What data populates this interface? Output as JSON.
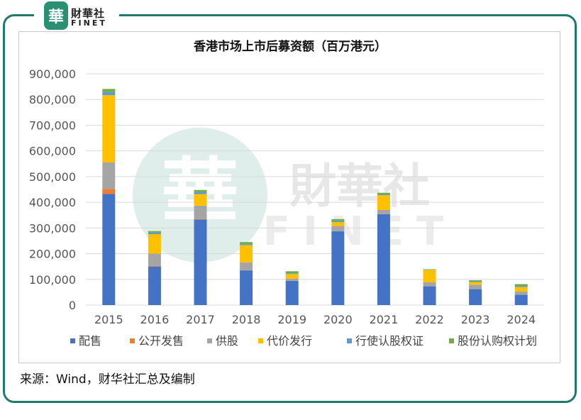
{
  "logo": {
    "badge": "華",
    "cn": "財華社",
    "en": "FINET"
  },
  "watermark": {
    "badge": "華",
    "cn": "財華社",
    "en": "FINET"
  },
  "source": "来源：Wind，财华社汇总及编制",
  "chart_data": {
    "type": "bar",
    "stacked": true,
    "title": "香港市场上市后募资额（百万港元）",
    "categories": [
      "2015",
      "2016",
      "2017",
      "2018",
      "2019",
      "2020",
      "2021",
      "2022",
      "2023",
      "2024"
    ],
    "ylim": [
      0,
      900000
    ],
    "yticks": [
      0,
      100000,
      200000,
      300000,
      400000,
      500000,
      600000,
      700000,
      800000,
      900000
    ],
    "ytick_labels": [
      "0",
      "100,000",
      "200,000",
      "300,000",
      "400,000",
      "500,000",
      "600,000",
      "700,000",
      "800,000",
      "900,000"
    ],
    "grid": true,
    "legend_position": "bottom",
    "series": [
      {
        "name": "配售",
        "color": "#4472c4",
        "values": [
          432000,
          150000,
          333000,
          135000,
          94000,
          287000,
          354000,
          73000,
          62000,
          40000
        ]
      },
      {
        "name": "公开发售",
        "color": "#ed7d31",
        "values": [
          20000,
          2000,
          2000,
          1000,
          500,
          500,
          1000,
          500,
          500,
          500
        ]
      },
      {
        "name": "供股",
        "color": "#a5a5a5",
        "values": [
          103000,
          48000,
          52000,
          30000,
          8000,
          20000,
          15000,
          15000,
          17000,
          12000
        ]
      },
      {
        "name": "代价发行",
        "color": "#ffc000",
        "values": [
          262000,
          76000,
          45000,
          67000,
          18000,
          15000,
          58000,
          48000,
          10000,
          18000
        ]
      },
      {
        "name": "行使认股权证",
        "color": "#5b9bd5",
        "values": [
          12000,
          6000,
          8000,
          4000,
          3000,
          4000,
          4000,
          1000,
          3000,
          4000
        ]
      },
      {
        "name": "股份认购权计划",
        "color": "#70ad47",
        "values": [
          12000,
          6000,
          8000,
          8000,
          8000,
          8000,
          5000,
          2000,
          4000,
          7000
        ]
      }
    ]
  }
}
